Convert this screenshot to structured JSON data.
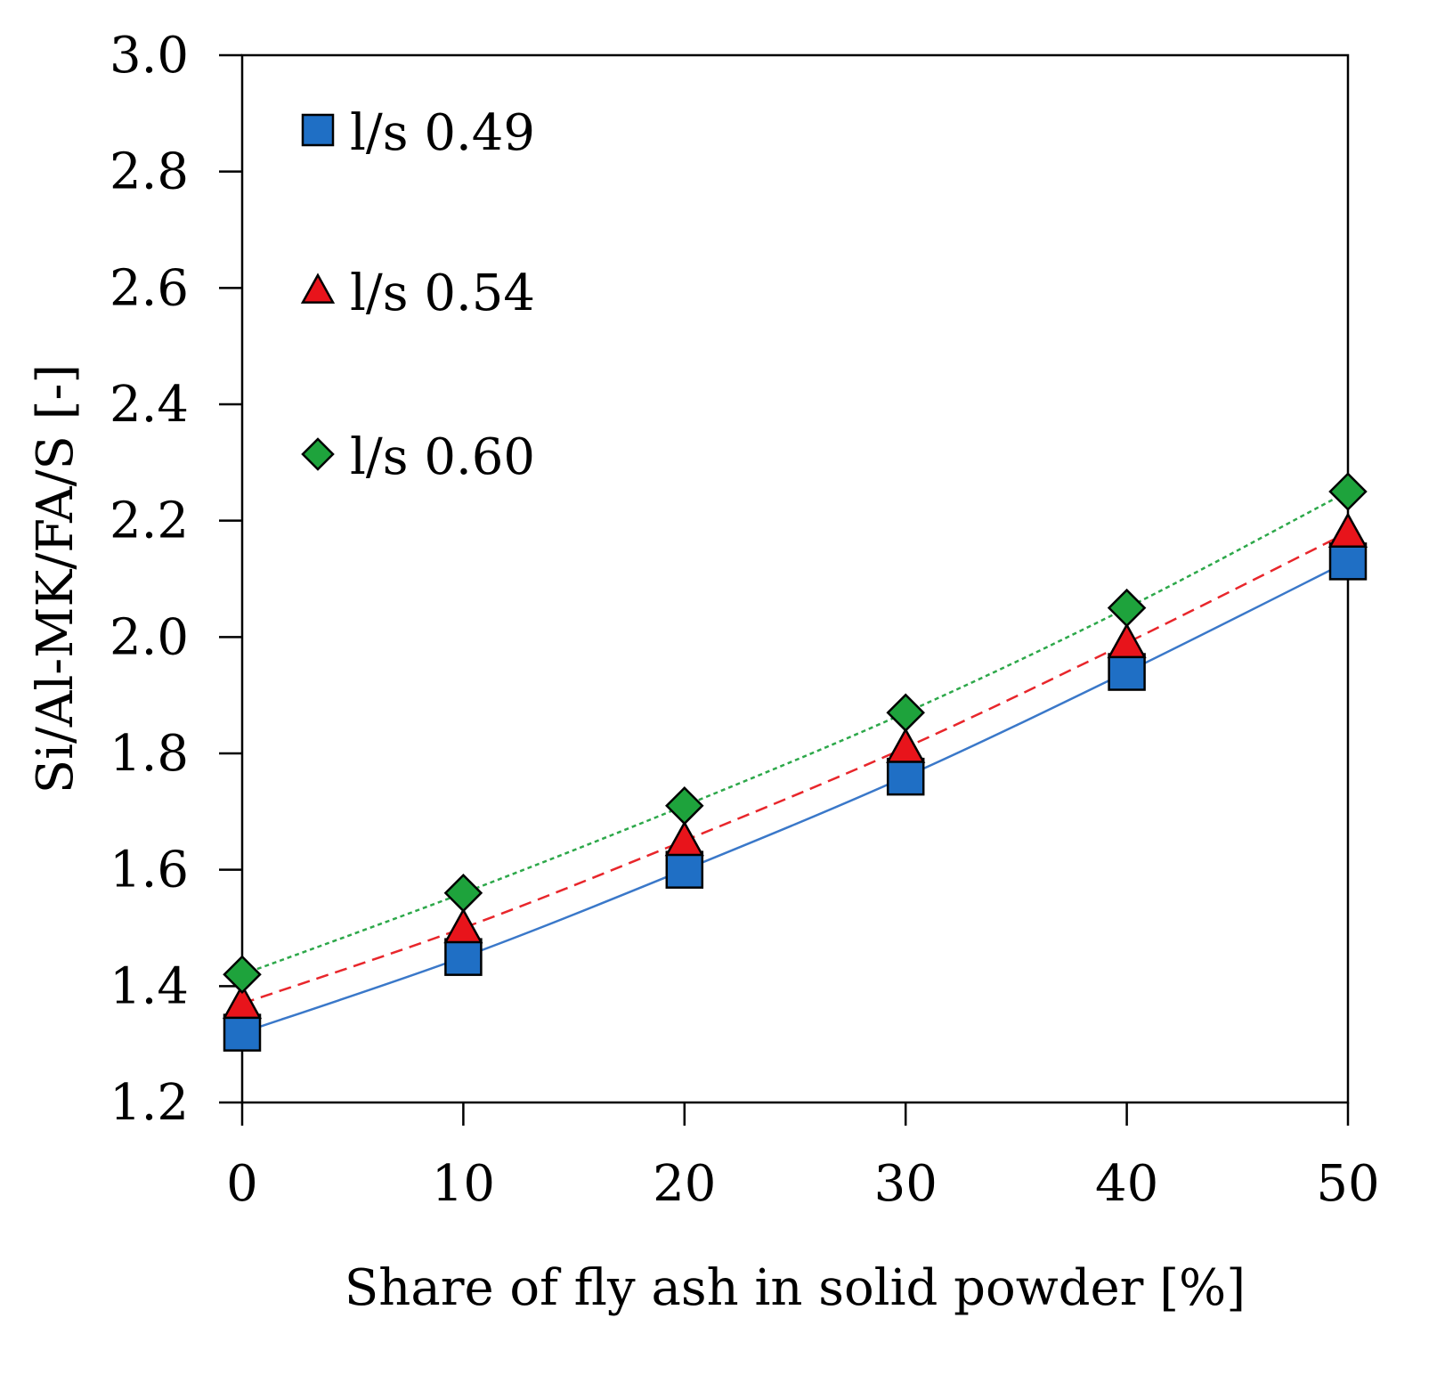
{
  "chart_data": {
    "type": "scatter",
    "title": "",
    "xlabel": "Share of fly ash in solid powder [%]",
    "ylabel": "Si/Al-MK/FA/S [-]",
    "xlim": [
      0,
      50
    ],
    "ylim": [
      1.2,
      3.0
    ],
    "x_ticks": [
      0,
      10,
      20,
      30,
      40,
      50
    ],
    "x_tick_labels": [
      "0",
      "10",
      "20",
      "30",
      "40",
      "50"
    ],
    "y_ticks": [
      1.2,
      1.4,
      1.6,
      1.8,
      2.0,
      2.2,
      2.4,
      2.6,
      2.8,
      3.0
    ],
    "y_tick_labels": [
      "1.2",
      "1.4",
      "1.6",
      "1.8",
      "2.0",
      "2.2",
      "2.4",
      "2.6",
      "2.8",
      "3.0"
    ],
    "grid": false,
    "legend_position": "top-left",
    "x": [
      0,
      10,
      20,
      30,
      40,
      50
    ],
    "series": [
      {
        "name": "l/s 0.49",
        "label": "l/s 0.49",
        "marker": "square",
        "color": "#1F6FC5",
        "trendline_color": "#3A78C9",
        "trendline_style": "solid",
        "values": [
          1.32,
          1.45,
          1.6,
          1.76,
          1.94,
          2.13
        ]
      },
      {
        "name": "l/s 0.54",
        "label": "l/s 0.54",
        "marker": "triangle",
        "color": "#E8141B",
        "trendline_color": "#E8262B",
        "trendline_style": "dashed",
        "values": [
          1.37,
          1.5,
          1.65,
          1.81,
          1.99,
          2.18
        ]
      },
      {
        "name": "l/s 0.60",
        "label": "l/s 0.60",
        "marker": "diamond",
        "color": "#1EA33C",
        "trendline_color": "#2DA84A",
        "trendline_style": "dotted",
        "values": [
          1.42,
          1.56,
          1.71,
          1.87,
          2.05,
          2.25
        ]
      }
    ]
  }
}
